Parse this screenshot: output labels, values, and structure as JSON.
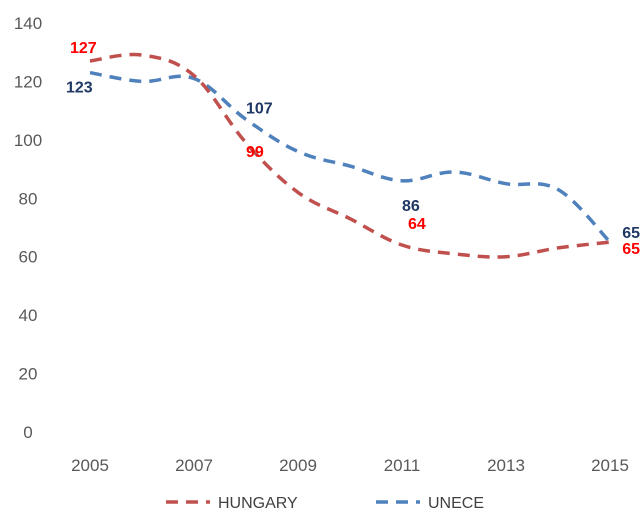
{
  "chart_data": {
    "type": "line",
    "x": [
      2005,
      2006,
      2007,
      2008,
      2009,
      2010,
      2011,
      2012,
      2013,
      2014,
      2015
    ],
    "x_tick_labels": [
      "2005",
      "2007",
      "2009",
      "2011",
      "2013",
      "2015"
    ],
    "y_tick_labels": [
      "0",
      "20",
      "40",
      "60",
      "80",
      "100",
      "120",
      "140"
    ],
    "ylim": [
      0,
      140
    ],
    "xlim": [
      2005,
      2015
    ],
    "grid": false,
    "legend_position": "bottom",
    "series": [
      {
        "name": "HUNGARY",
        "color": "#c0504d",
        "label_color": "#ff0000",
        "values": [
          127,
          129,
          122,
          99,
          82,
          73,
          64,
          61,
          60,
          63,
          65
        ],
        "data_labels": [
          {
            "x": 2005,
            "text": "127"
          },
          {
            "x": 2008,
            "text": "99"
          },
          {
            "x": 2011,
            "text": "64"
          },
          {
            "x": 2015,
            "text": "65"
          }
        ]
      },
      {
        "name": "UNECE",
        "color": "#4f81bd",
        "label_color": "#1f3864",
        "values": [
          123,
          120,
          121,
          107,
          96,
          91,
          86,
          89,
          85,
          83,
          65
        ],
        "data_labels": [
          {
            "x": 2005,
            "text": "123"
          },
          {
            "x": 2008,
            "text": "107"
          },
          {
            "x": 2011,
            "text": "86"
          },
          {
            "x": 2015,
            "text": "65"
          }
        ]
      }
    ]
  }
}
